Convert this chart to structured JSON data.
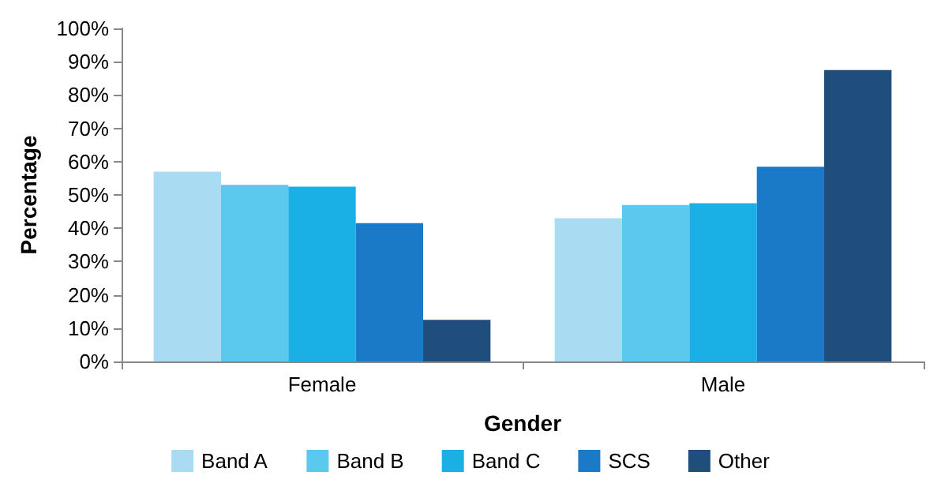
{
  "chart_data": {
    "type": "bar",
    "xlabel": "Gender",
    "ylabel": "Percentage",
    "categories": [
      "Female",
      "Male"
    ],
    "series": [
      {
        "name": "Band A",
        "color": "#a9dcf3",
        "values": [
          57,
          43
        ]
      },
      {
        "name": "Band B",
        "color": "#5bc8ee",
        "values": [
          53,
          47
        ]
      },
      {
        "name": "Band C",
        "color": "#1ab0e6",
        "values": [
          52.5,
          47.5
        ]
      },
      {
        "name": "SCS",
        "color": "#1a7ac8",
        "values": [
          41.5,
          58.5
        ]
      },
      {
        "name": "Other",
        "color": "#1f4e7d",
        "values": [
          12.5,
          87.5
        ]
      }
    ],
    "ylim": [
      0,
      100
    ],
    "yticks": [
      {
        "value": 0,
        "label": "0%"
      },
      {
        "value": 10,
        "label": "10%"
      },
      {
        "value": 20,
        "label": "20%"
      },
      {
        "value": 30,
        "label": "30%"
      },
      {
        "value": 40,
        "label": "40%"
      },
      {
        "value": 50,
        "label": "50%"
      },
      {
        "value": 60,
        "label": "60%"
      },
      {
        "value": 70,
        "label": "70%"
      },
      {
        "value": 80,
        "label": "80%"
      },
      {
        "value": 90,
        "label": "90%"
      },
      {
        "value": 100,
        "label": "100%"
      }
    ],
    "grid": false,
    "legend": "bottom"
  }
}
